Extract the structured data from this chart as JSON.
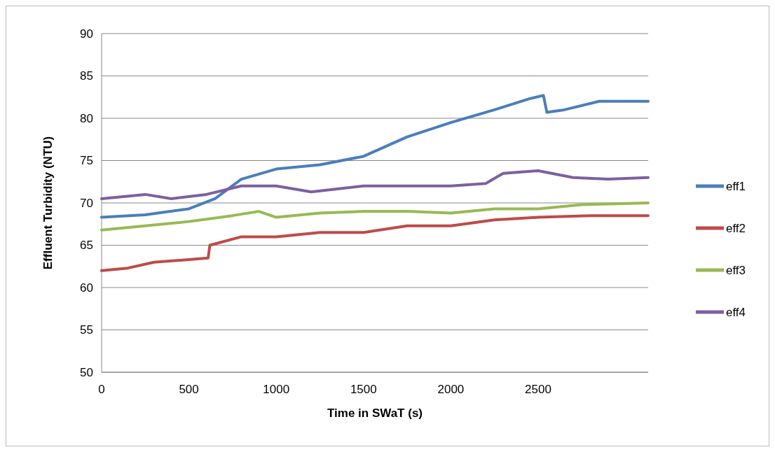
{
  "chart_data": {
    "type": "line",
    "xlabel": "Time in SWaT (s)",
    "ylabel": "Effluent Turbidity (NTU)",
    "xlim": [
      0,
      3130
    ],
    "xticks": [
      0,
      500,
      1000,
      1500,
      2000,
      2500
    ],
    "ylim": [
      50,
      90
    ],
    "yticks": [
      50,
      55,
      60,
      65,
      70,
      75,
      80,
      85,
      90
    ],
    "grid": "y",
    "legend": "right",
    "line_style": "solid",
    "series": [
      {
        "name": "eff1",
        "color": "#4a7ebb",
        "x": [
          0,
          250,
          500,
          650,
          800,
          1000,
          1250,
          1500,
          1750,
          2000,
          2250,
          2450,
          2530,
          2550,
          2650,
          2850,
          3130
        ],
        "values": [
          68.3,
          68.6,
          69.3,
          70.5,
          72.8,
          74,
          74.5,
          75.5,
          77.8,
          79.5,
          81,
          82.3,
          82.7,
          80.7,
          81,
          82,
          82
        ]
      },
      {
        "name": "eff2",
        "color": "#be4b48",
        "x": [
          0,
          150,
          300,
          500,
          610,
          620,
          800,
          1000,
          1250,
          1500,
          1750,
          2000,
          2250,
          2500,
          2800,
          3130
        ],
        "values": [
          62,
          62.3,
          63,
          63.3,
          63.5,
          65,
          66,
          66,
          66.5,
          66.5,
          67.3,
          67.3,
          68,
          68.3,
          68.5,
          68.5
        ]
      },
      {
        "name": "eff3",
        "color": "#98b954",
        "x": [
          0,
          250,
          500,
          750,
          900,
          1000,
          1250,
          1500,
          1750,
          2000,
          2250,
          2500,
          2750,
          3130
        ],
        "values": [
          66.8,
          67.3,
          67.8,
          68.5,
          69,
          68.3,
          68.8,
          69,
          69,
          68.8,
          69.3,
          69.3,
          69.8,
          70
        ]
      },
      {
        "name": "eff4",
        "color": "#7d60a0",
        "x": [
          0,
          250,
          400,
          600,
          800,
          1000,
          1200,
          1500,
          1750,
          2000,
          2200,
          2300,
          2500,
          2700,
          2900,
          3130
        ],
        "values": [
          70.5,
          71,
          70.5,
          71,
          72,
          72,
          71.3,
          72,
          72,
          72,
          72.3,
          73.5,
          73.8,
          73,
          72.8,
          73
        ]
      }
    ]
  }
}
